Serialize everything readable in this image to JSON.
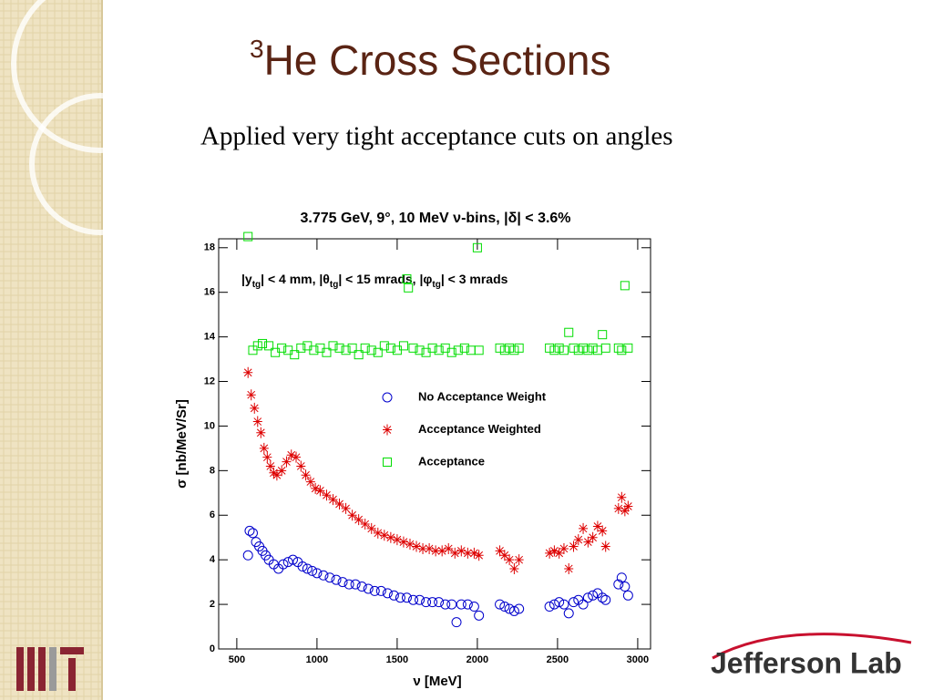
{
  "slide": {
    "title_parts": [
      "3",
      "He Cross Sections"
    ],
    "subtitle": "Applied very tight acceptance cuts on angles",
    "logo_right": "Jefferson Lab"
  },
  "chart_data": {
    "type": "scatter",
    "title": "3.775 GeV, 9°, 10 MeV ν-bins, |δ| < 3.6%",
    "cuts_label": [
      "|y",
      "tg",
      "| < 4 mm, |θ",
      "tg",
      "| < 15 mrads, |φ",
      "tg",
      "| < 3 mrads"
    ],
    "x_label": "ν [MeV]",
    "y_label": "σ [nb/MeV/Sr]",
    "xlim": [
      387,
      3080
    ],
    "ylim": [
      0,
      18.4
    ],
    "xticks": [
      500,
      1000,
      1500,
      2000,
      2500,
      3000
    ],
    "yticks": [
      0,
      2,
      4,
      6,
      8,
      10,
      12,
      14,
      16,
      18
    ],
    "series": [
      {
        "name": "No Acceptance Weight",
        "color": "#0000cc",
        "marker": "circle",
        "x": [
          570,
          580,
          600,
          620,
          640,
          660,
          680,
          700,
          730,
          760,
          790,
          820,
          850,
          880,
          910,
          940,
          970,
          1000,
          1040,
          1080,
          1120,
          1160,
          1200,
          1240,
          1280,
          1320,
          1360,
          1400,
          1440,
          1480,
          1520,
          1560,
          1600,
          1640,
          1680,
          1720,
          1760,
          1800,
          1840,
          1870,
          1900,
          1940,
          1980,
          2010,
          2140,
          2170,
          2200,
          2230,
          2260,
          2450,
          2480,
          2510,
          2540,
          2570,
          2600,
          2630,
          2660,
          2690,
          2720,
          2750,
          2780,
          2800,
          2880,
          2900,
          2920,
          2940
        ],
        "values": [
          4.2,
          5.3,
          5.2,
          4.8,
          4.6,
          4.4,
          4.2,
          4.0,
          3.8,
          3.6,
          3.8,
          3.9,
          4.0,
          3.9,
          3.7,
          3.6,
          3.5,
          3.4,
          3.3,
          3.2,
          3.1,
          3.0,
          2.9,
          2.9,
          2.8,
          2.7,
          2.6,
          2.6,
          2.5,
          2.4,
          2.3,
          2.3,
          2.2,
          2.2,
          2.1,
          2.1,
          2.1,
          2.0,
          2.0,
          1.2,
          2.0,
          2.0,
          1.9,
          1.5,
          2.0,
          1.9,
          1.8,
          1.7,
          1.8,
          1.9,
          2.0,
          2.1,
          2.0,
          1.6,
          2.1,
          2.2,
          2.0,
          2.3,
          2.4,
          2.5,
          2.3,
          2.2,
          2.9,
          3.2,
          2.8,
          2.4
        ]
      },
      {
        "name": "Acceptance Weighted",
        "color": "#dd0000",
        "marker": "star",
        "x": [
          570,
          590,
          610,
          630,
          650,
          670,
          690,
          710,
          730,
          750,
          780,
          810,
          840,
          870,
          900,
          930,
          960,
          990,
          1020,
          1060,
          1100,
          1140,
          1180,
          1220,
          1260,
          1300,
          1340,
          1380,
          1420,
          1460,
          1500,
          1540,
          1580,
          1620,
          1660,
          1700,
          1740,
          1780,
          1820,
          1860,
          1900,
          1940,
          1980,
          2010,
          2140,
          2170,
          2200,
          2230,
          2260,
          2450,
          2480,
          2510,
          2540,
          2570,
          2600,
          2630,
          2660,
          2690,
          2720,
          2750,
          2780,
          2800,
          2880,
          2900,
          2920,
          2940
        ],
        "values": [
          12.4,
          11.4,
          10.8,
          10.2,
          9.7,
          9.0,
          8.6,
          8.2,
          7.9,
          7.8,
          8.0,
          8.4,
          8.7,
          8.6,
          8.2,
          7.8,
          7.5,
          7.2,
          7.1,
          6.9,
          6.7,
          6.5,
          6.3,
          6.0,
          5.8,
          5.6,
          5.4,
          5.2,
          5.1,
          5.0,
          4.9,
          4.8,
          4.7,
          4.6,
          4.5,
          4.5,
          4.4,
          4.4,
          4.5,
          4.3,
          4.4,
          4.3,
          4.3,
          4.2,
          4.4,
          4.2,
          4.0,
          3.6,
          4.0,
          4.3,
          4.4,
          4.3,
          4.5,
          3.6,
          4.6,
          4.9,
          5.4,
          4.8,
          5.0,
          5.5,
          5.3,
          4.6,
          6.3,
          6.8,
          6.2,
          6.4
        ]
      },
      {
        "name": "Acceptance",
        "color": "#00dd00",
        "marker": "square",
        "x": [
          570,
          600,
          630,
          660,
          700,
          740,
          780,
          820,
          860,
          900,
          940,
          980,
          1020,
          1060,
          1100,
          1140,
          1180,
          1220,
          1260,
          1300,
          1340,
          1380,
          1420,
          1460,
          1500,
          1540,
          1560,
          1570,
          1600,
          1640,
          1680,
          1720,
          1760,
          1800,
          1840,
          1880,
          1920,
          1960,
          2000,
          2010,
          2140,
          2170,
          2200,
          2230,
          2260,
          2450,
          2480,
          2510,
          2540,
          2570,
          2600,
          2630,
          2660,
          2690,
          2720,
          2750,
          2780,
          2800,
          2880,
          2900,
          2920,
          2940
        ],
        "values": [
          18.5,
          13.4,
          13.6,
          13.7,
          13.6,
          13.3,
          13.5,
          13.4,
          13.2,
          13.5,
          13.6,
          13.4,
          13.5,
          13.3,
          13.6,
          13.5,
          13.4,
          13.5,
          13.2,
          13.5,
          13.4,
          13.3,
          13.6,
          13.5,
          13.4,
          13.6,
          16.6,
          16.2,
          13.5,
          13.4,
          13.3,
          13.5,
          13.4,
          13.5,
          13.3,
          13.4,
          13.5,
          13.4,
          18.0,
          13.4,
          13.5,
          13.4,
          13.5,
          13.4,
          13.5,
          13.5,
          13.4,
          13.5,
          13.4,
          14.2,
          13.5,
          13.4,
          13.5,
          13.4,
          13.5,
          13.4,
          14.1,
          13.5,
          13.5,
          13.4,
          16.3,
          13.5
        ]
      }
    ]
  }
}
